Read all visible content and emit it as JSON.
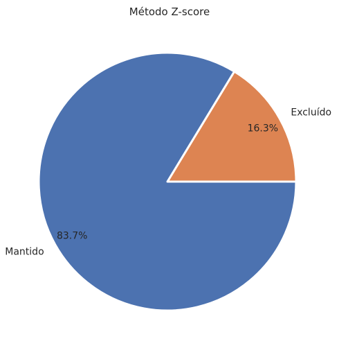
{
  "chart_data": {
    "type": "pie",
    "title": "Método Z-score",
    "slices": [
      {
        "label": "Excluído",
        "value": 16.3,
        "pct_label": "16.3%",
        "color": "#dd8452"
      },
      {
        "label": "Mantido",
        "value": 83.7,
        "pct_label": "83.7%",
        "color": "#4c72b0"
      }
    ],
    "start_angle_deg": 0,
    "direction": "counterclockwise",
    "wedge_edge_color": "#ffffff",
    "legend": "none"
  }
}
